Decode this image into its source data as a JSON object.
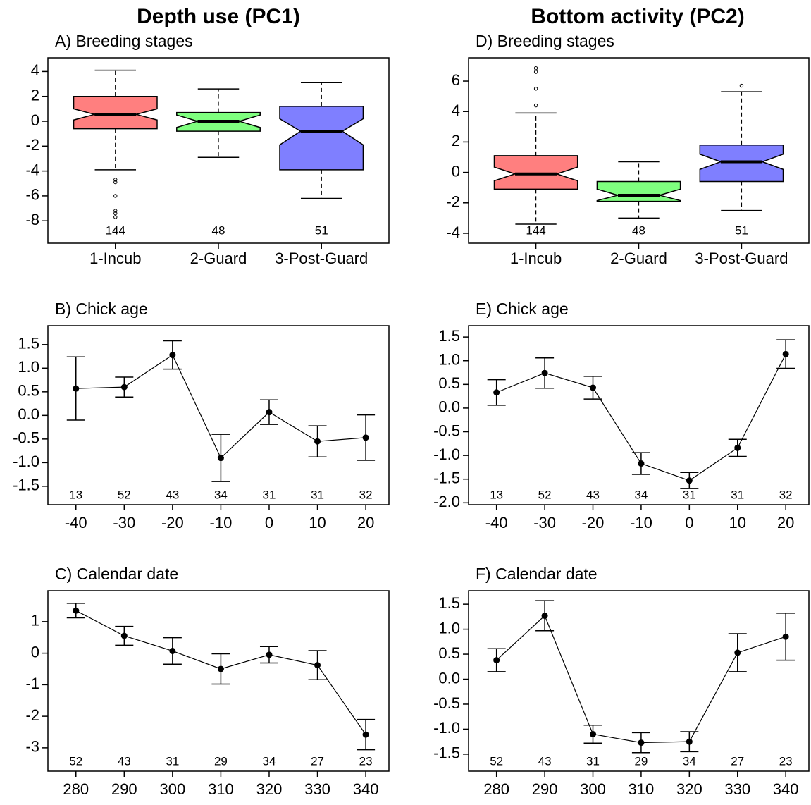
{
  "column_titles": [
    "Depth use (PC1)",
    "Bottom activity (PC2)"
  ],
  "chart_data": [
    {
      "type": "boxplot",
      "title": "A) Breeding stages",
      "categories": [
        "1-Incub",
        "2-Guard",
        "3-Post-Guard"
      ],
      "colors": [
        "#ff7f7f",
        "#7fff7f",
        "#7f7fff"
      ],
      "boxes": [
        {
          "whisker_low": -3.9,
          "q1": -0.6,
          "median": 0.55,
          "q3": 2.0,
          "whisker_high": 4.1,
          "notch": [
            0.1,
            1.0
          ],
          "outliers": [
            -4.7,
            -4.9,
            -6.0,
            -7.2,
            -7.4,
            -7.7
          ]
        },
        {
          "whisker_low": -2.9,
          "q1": -0.8,
          "median": 0,
          "q3": 0.7,
          "whisker_high": 2.6,
          "notch": [
            -0.5,
            0.5
          ],
          "outliers": []
        },
        {
          "whisker_low": -6.2,
          "q1": -3.9,
          "median": -0.8,
          "q3": 1.2,
          "whisker_high": 3.1,
          "notch": [
            -1.9,
            0.2
          ],
          "outliers": []
        }
      ],
      "counts": [
        144,
        48,
        51
      ],
      "ylim": [
        -9.8,
        5.1
      ],
      "yticks": [
        4,
        2,
        0,
        -2,
        -4,
        -6,
        -8
      ]
    },
    {
      "type": "line",
      "title": "B) Chick age",
      "x": [
        -40,
        -30,
        -20,
        -10,
        0,
        10,
        20
      ],
      "values": [
        0.57,
        0.6,
        1.28,
        -0.9,
        0.07,
        -0.55,
        -0.47
      ],
      "errors": [
        0.67,
        0.21,
        0.3,
        0.5,
        0.26,
        0.33,
        0.48
      ],
      "counts": [
        13,
        52,
        43,
        34,
        31,
        31,
        32
      ],
      "color": "#000000",
      "xlim": [
        -45.8,
        24.8
      ],
      "xticks": [
        -40,
        -30,
        -20,
        -10,
        0,
        10,
        20
      ],
      "ylim": [
        -1.89,
        1.9
      ],
      "yticks": [
        1.5,
        {
          "value": 1,
          "label": "1.0"
        },
        0.5,
        {
          "value": 0,
          "label": "0.0"
        },
        -0.5,
        {
          "value": -1,
          "label": "-1.0"
        },
        -1.5
      ]
    },
    {
      "type": "line",
      "title": "C) Calendar date",
      "x": [
        280,
        290,
        300,
        310,
        320,
        330,
        340
      ],
      "values": [
        1.35,
        0.55,
        0.07,
        -0.5,
        -0.05,
        -0.38,
        -2.58
      ],
      "errors": [
        0.23,
        0.3,
        0.42,
        0.48,
        0.26,
        0.46,
        0.48
      ],
      "counts": [
        52,
        43,
        31,
        29,
        34,
        27,
        23
      ],
      "color": "#000000",
      "xlim": [
        274.2,
        344.8
      ],
      "xticks": [
        280,
        290,
        300,
        310,
        320,
        330,
        340
      ],
      "ylim": [
        -3.74,
        1.98
      ],
      "yticks": [
        1,
        0,
        -1,
        -2,
        -3
      ]
    },
    {
      "type": "boxplot",
      "title": "D) Breeding stages",
      "categories": [
        "1-Incub",
        "2-Guard",
        "3-Post-Guard"
      ],
      "colors": [
        "#ff7f7f",
        "#7fff7f",
        "#7f7fff"
      ],
      "boxes": [
        {
          "whisker_low": -3.4,
          "q1": -1.1,
          "median": -0.1,
          "q3": 1.1,
          "whisker_high": 3.9,
          "notch": [
            -0.55,
            0.35
          ],
          "outliers": [
            4.4,
            5.5,
            6.6,
            6.85
          ]
        },
        {
          "whisker_low": -3.0,
          "q1": -1.9,
          "median": -1.5,
          "q3": -0.6,
          "whisker_high": 0.7,
          "notch": [
            -1.85,
            -1.1
          ],
          "outliers": []
        },
        {
          "whisker_low": -2.5,
          "q1": -0.6,
          "median": 0.7,
          "q3": 1.8,
          "whisker_high": 5.3,
          "notch": [
            0.2,
            1.2
          ],
          "outliers": [
            5.7
          ]
        }
      ],
      "counts": [
        144,
        48,
        51
      ],
      "ylim": [
        -4.65,
        7.53
      ],
      "yticks": [
        6,
        4,
        2,
        0,
        -2,
        -4
      ]
    },
    {
      "type": "line",
      "title": "E) Chick age",
      "x": [
        -40,
        -30,
        -20,
        -10,
        0,
        10,
        20
      ],
      "values": [
        0.33,
        0.74,
        0.43,
        -1.17,
        -1.53,
        -0.84,
        1.14
      ],
      "errors": [
        0.27,
        0.32,
        0.24,
        0.23,
        0.17,
        0.18,
        0.3
      ],
      "counts": [
        13,
        52,
        43,
        34,
        31,
        31,
        32
      ],
      "color": "#000000",
      "xlim": [
        -45.8,
        24.8
      ],
      "xticks": [
        -40,
        -30,
        -20,
        -10,
        0,
        10,
        20
      ],
      "ylim": [
        -2.04,
        1.74
      ],
      "yticks": [
        1.5,
        {
          "value": 1,
          "label": "1.0"
        },
        0.5,
        {
          "value": 0,
          "label": "0.0"
        },
        -0.5,
        {
          "value": -1,
          "label": "-1.0"
        },
        -1.5,
        {
          "value": -2,
          "label": "-2.0"
        }
      ]
    },
    {
      "type": "line",
      "title": "F) Calendar date",
      "x": [
        280,
        290,
        300,
        310,
        320,
        330,
        340
      ],
      "values": [
        0.38,
        1.27,
        -1.1,
        -1.27,
        -1.25,
        0.53,
        0.85
      ],
      "errors": [
        0.23,
        0.3,
        0.18,
        0.2,
        0.2,
        0.38,
        0.47
      ],
      "counts": [
        52,
        43,
        31,
        29,
        34,
        27,
        23
      ],
      "color": "#000000",
      "xlim": [
        274.2,
        344.8
      ],
      "xticks": [
        280,
        290,
        300,
        310,
        320,
        330,
        340
      ],
      "ylim": [
        -1.84,
        1.77
      ],
      "yticks": [
        1.5,
        {
          "value": 1,
          "label": "1.0"
        },
        0.5,
        {
          "value": 0,
          "label": "0.0"
        },
        -0.5,
        {
          "value": -1,
          "label": "-1.0"
        },
        -1.5
      ]
    }
  ]
}
